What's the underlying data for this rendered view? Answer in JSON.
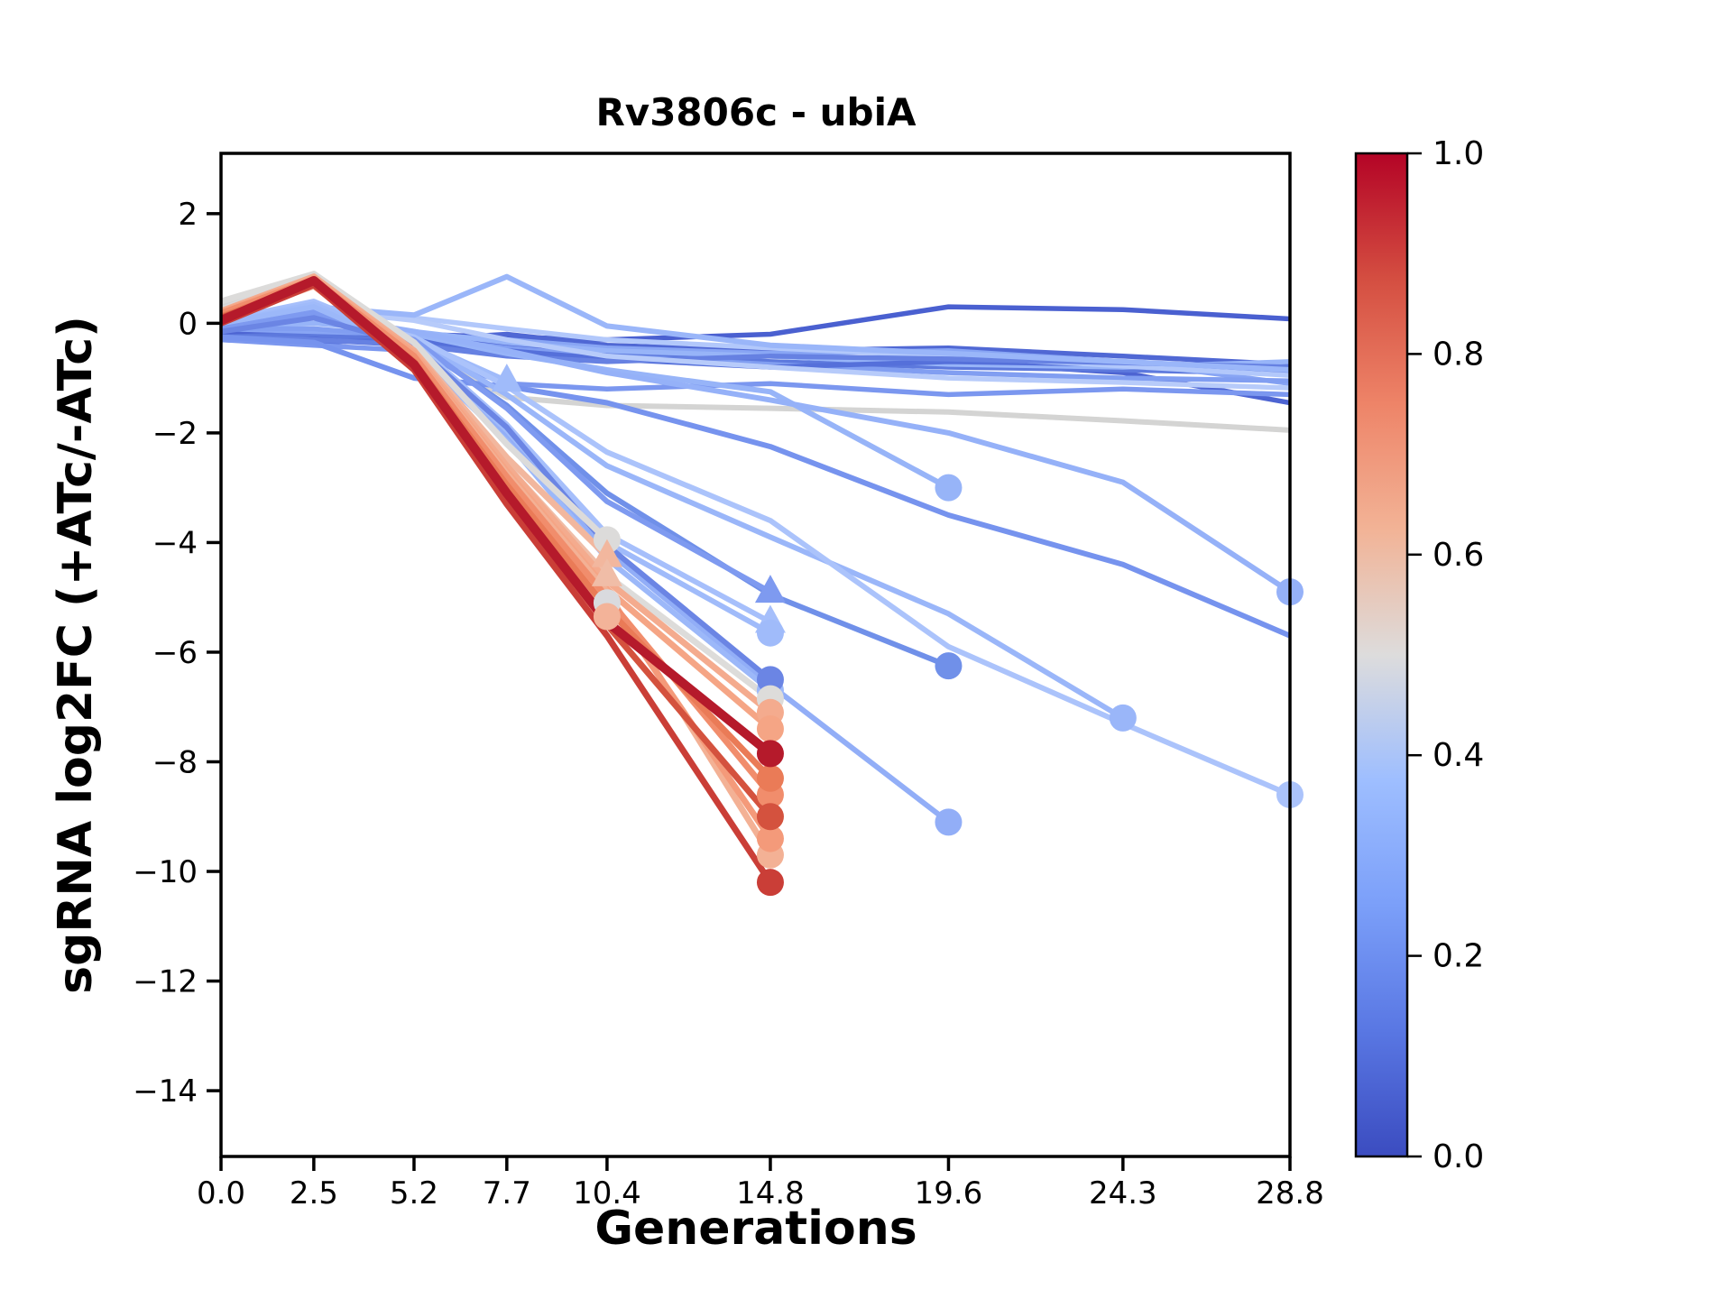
{
  "title": "Rv3806c - ubiA",
  "axes": {
    "xlabel": "Generations",
    "ylabel": "sgRNA log2FC (+ATc/-ATc)",
    "x_tick_labels": [
      "0.0",
      "2.5",
      "5.2",
      "7.7",
      "10.4",
      "14.8",
      "19.6",
      "24.3",
      "28.8"
    ],
    "x_tick_values": [
      0,
      2.5,
      5.2,
      7.7,
      10.4,
      14.8,
      19.6,
      24.3,
      28.8
    ],
    "y_tick_labels": [
      "2",
      "0",
      "−2",
      "−4",
      "−6",
      "−8",
      "−10",
      "−12",
      "−14"
    ],
    "y_tick_values": [
      2,
      0,
      -2,
      -4,
      -6,
      -8,
      -10,
      -12,
      -14
    ],
    "xlim": [
      0,
      28.8
    ],
    "ylim": [
      -15.2,
      3.1
    ],
    "grid": false,
    "frame_color": "#000000"
  },
  "colorbar": {
    "colormap": "coolwarm",
    "tick_labels": [
      "0.0",
      "0.2",
      "0.4",
      "0.6",
      "0.8",
      "1.0"
    ],
    "tick_values": [
      0,
      0.2,
      0.4,
      0.6,
      0.8,
      1.0
    ],
    "range": [
      0,
      1
    ],
    "stops": [
      {
        "t": 0.0,
        "color": "#3b4cc0"
      },
      {
        "t": 0.125,
        "color": "#5977e3"
      },
      {
        "t": 0.25,
        "color": "#7b9ff9"
      },
      {
        "t": 0.375,
        "color": "#9ebeff"
      },
      {
        "t": 0.5,
        "color": "#dddcdc"
      },
      {
        "t": 0.625,
        "color": "#f2b396"
      },
      {
        "t": 0.75,
        "color": "#ee8468"
      },
      {
        "t": 0.875,
        "color": "#d44e41"
      },
      {
        "t": 1.0,
        "color": "#b40426"
      }
    ]
  },
  "chart_data": {
    "type": "line",
    "title": "Rv3806c - ubiA",
    "xlabel": "Generations",
    "ylabel": "sgRNA log2FC (+ATc/-ATc)",
    "xlim": [
      0,
      28.8
    ],
    "ylim": [
      -15.2,
      3.1
    ],
    "legend": "colorbar 0.0-1.0 (coolwarm), sgRNA color value",
    "x_full": [
      0,
      2.5,
      5.2,
      7.7,
      10.4,
      14.8,
      19.6,
      24.3,
      28.8
    ],
    "series": [
      {
        "cv": 0.5,
        "color": "#d4d4d3",
        "lw": 6,
        "marker": "none",
        "x": [
          0,
          2.5,
          5.2,
          7.7,
          10.4,
          14.8,
          19.6,
          24.3,
          28.8
        ],
        "y": [
          0.35,
          0.88,
          -0.4,
          -1.35,
          -1.5,
          -1.55,
          -1.62,
          -1.78,
          -1.95
        ]
      },
      {
        "cv": 0.07,
        "color": "#4a60d0",
        "lw": 5.5,
        "marker": "none",
        "x": [
          0,
          2.5,
          5.2,
          7.7,
          10.4,
          14.8,
          19.6,
          24.3,
          28.8
        ],
        "y": [
          -0.2,
          -0.25,
          -0.2,
          -0.25,
          -0.3,
          -0.2,
          0.3,
          0.25,
          0.08
        ]
      },
      {
        "cv": 0.1,
        "color": "#5068d4",
        "lw": 5.5,
        "marker": "none",
        "x": [
          0,
          2.5,
          5.2,
          7.7,
          10.4,
          14.8,
          19.6,
          24.3,
          28.8
        ],
        "y": [
          -0.15,
          -0.2,
          -0.3,
          -0.2,
          -0.4,
          -0.5,
          -0.45,
          -0.6,
          -0.75
        ]
      },
      {
        "cv": 0.09,
        "color": "#4d64d2",
        "lw": 5.5,
        "marker": "none",
        "x": [
          0,
          2.5,
          5.2,
          7.7,
          10.4,
          14.8,
          19.6,
          24.3,
          28.8
        ],
        "y": [
          -0.2,
          -0.3,
          -0.25,
          -0.4,
          -0.5,
          -0.6,
          -0.7,
          -0.9,
          -1.45
        ]
      },
      {
        "cv": 0.15,
        "color": "#5d79dd",
        "lw": 5.5,
        "marker": "none",
        "x": [
          0,
          2.5,
          5.2,
          7.7,
          10.4,
          14.8,
          19.6,
          24.3,
          28.8
        ],
        "y": [
          -0.25,
          -0.2,
          -0.35,
          -0.5,
          -0.55,
          -0.7,
          -0.8,
          -0.85,
          -0.92
        ]
      },
      {
        "cv": 0.3,
        "color": "#88a5f4",
        "lw": 5.5,
        "marker": "none",
        "x": [
          0,
          2.5,
          5.2,
          7.7,
          10.4,
          14.8,
          19.6,
          24.3,
          28.8
        ],
        "y": [
          -0.1,
          -0.15,
          -0.2,
          -0.3,
          -0.45,
          -0.55,
          -0.5,
          -0.7,
          -1.1
        ]
      },
      {
        "cv": 0.35,
        "color": "#97b4f8",
        "lw": 5.5,
        "marker": "none",
        "x": [
          0,
          2.5,
          5.2,
          7.7,
          10.4,
          14.8,
          19.6,
          24.3,
          28.8
        ],
        "y": [
          -0.05,
          0.0,
          -0.15,
          -0.35,
          -0.5,
          -0.6,
          -0.75,
          -0.8,
          -0.7
        ]
      },
      {
        "cv": 0.28,
        "color": "#819ef1",
        "lw": 5.5,
        "marker": "none",
        "x": [
          0,
          2.5,
          5.2,
          7.7,
          10.4,
          14.8,
          19.6,
          24.3,
          28.8
        ],
        "y": [
          -0.1,
          -0.1,
          -0.25,
          -0.45,
          -0.6,
          -0.75,
          -0.9,
          -1.0,
          -1.05
        ]
      },
      {
        "cv": 0.12,
        "color": "#5570da",
        "lw": 5.5,
        "marker": "none",
        "x": [
          0,
          2.5,
          5.2,
          7.7,
          10.4,
          14.8,
          19.6,
          24.3,
          28.8
        ],
        "y": [
          -0.3,
          -0.35,
          -0.3,
          -0.5,
          -0.65,
          -0.8,
          -0.7,
          -0.75,
          -0.85
        ]
      },
      {
        "cv": 0.43,
        "color": "#b2c8fb",
        "lw": 5.5,
        "marker": "none",
        "x": [
          0,
          2.5,
          5.2,
          7.7,
          10.4,
          14.8,
          19.6,
          24.3,
          28.8
        ],
        "y": [
          0.1,
          0.2,
          0.1,
          -0.1,
          -0.3,
          -0.45,
          -0.6,
          -0.78,
          -0.95
        ]
      },
      {
        "cv": 0.18,
        "color": "#6681e2",
        "lw": 5.5,
        "marker": "none",
        "x": [
          0,
          2.5,
          5.2,
          7.7,
          10.4,
          14.8,
          19.6,
          24.3,
          28.8
        ],
        "y": [
          -0.25,
          -0.3,
          -0.4,
          -0.6,
          -0.7,
          -0.6,
          -0.65,
          -0.72,
          -0.8
        ]
      },
      {
        "cv": 0.44,
        "color": "#b7cbfa",
        "lw": 5.5,
        "marker": "none",
        "x": [
          0,
          2.5,
          5.2,
          7.7,
          10.4,
          14.8,
          19.6,
          24.3,
          28.8
        ],
        "y": [
          0.15,
          0.25,
          0.05,
          -0.3,
          -0.6,
          -0.8,
          -1.0,
          -1.08,
          -1.18
        ]
      },
      {
        "cv": 0.26,
        "color": "#7b97ef",
        "lw": 5.5,
        "marker": "none",
        "x": [
          0,
          2.5,
          5.2,
          7.7,
          10.4,
          14.8,
          19.6,
          24.3,
          28.8
        ],
        "y": [
          -0.3,
          -0.4,
          -0.5,
          -1.1,
          -1.2,
          -1.1,
          -1.3,
          -1.2,
          -1.3
        ]
      },
      {
        "cv": 0.36,
        "color": "#9ab6f9",
        "lw": 6,
        "marker": "none",
        "x": [
          0,
          2.5,
          5.2,
          7.7,
          10.4,
          14.8,
          19.6,
          24.3,
          28.8
        ],
        "y": [
          0.05,
          0.3,
          0.15,
          0.85,
          -0.05,
          -0.4,
          -0.55,
          -0.7,
          -0.85
        ]
      },
      {
        "cv": 0.24,
        "color": "#7693ee",
        "lw": 6,
        "marker": "none",
        "x": [
          0,
          2.5,
          5.2,
          7.7,
          10.4,
          14.8,
          19.6,
          24.3,
          28.8
        ],
        "y": [
          -0.25,
          -0.35,
          -1.0,
          -1.15,
          -1.45,
          -2.25,
          -3.5,
          -4.4,
          -5.7
        ]
      },
      {
        "cv": 0.38,
        "color": "#a0bbfa",
        "lw": 6,
        "marker": "triangle",
        "x": [
          0,
          2.5,
          5.2,
          7.7
        ],
        "y": [
          0.0,
          0.12,
          -0.3,
          -1.05
        ]
      },
      {
        "cv": 0.35,
        "color": "#97b4f8",
        "lw": 6,
        "marker": "circle",
        "x": [
          0,
          2.5,
          5.2,
          7.7,
          10.4,
          14.8,
          19.6
        ],
        "y": [
          0.05,
          0.2,
          -0.2,
          -0.55,
          -0.85,
          -1.25,
          -3.0
        ]
      },
      {
        "cv": 0.34,
        "color": "#95b1f8",
        "lw": 6,
        "marker": "circle",
        "x": [
          0,
          2.5,
          5.2,
          7.7,
          10.4,
          14.8,
          19.6,
          24.3,
          28.8
        ],
        "y": [
          0.0,
          0.15,
          -0.15,
          -0.5,
          -0.9,
          -1.4,
          -2.0,
          -2.9,
          -4.9
        ]
      },
      {
        "cv": 0.36,
        "color": "#9ab6f9",
        "lw": 6,
        "marker": "circle",
        "x": [
          0,
          2.5,
          5.2,
          7.7,
          10.4,
          14.8,
          19.6,
          24.3
        ],
        "y": [
          0.0,
          0.2,
          -0.3,
          -1.3,
          -2.6,
          -3.9,
          -5.3,
          -7.2
        ]
      },
      {
        "cv": 0.41,
        "color": "#abc3fb",
        "lw": 6,
        "marker": "circle",
        "x": [
          0,
          2.5,
          5.2,
          7.7,
          10.4,
          14.8,
          19.6,
          24.3,
          28.8
        ],
        "y": [
          0.05,
          0.25,
          -0.25,
          -1.15,
          -2.35,
          -3.6,
          -5.9,
          -7.3,
          -8.6
        ]
      },
      {
        "cv": 0.33,
        "color": "#92aef7",
        "lw": 6,
        "marker": "circle",
        "x": [
          0,
          2.5,
          5.2,
          7.7,
          10.4,
          14.8,
          19.6
        ],
        "y": [
          0.0,
          0.25,
          -0.45,
          -2.05,
          -4.15,
          -6.6,
          -9.1
        ]
      },
      {
        "cv": 0.22,
        "color": "#7090e9",
        "lw": 6,
        "marker": "circle",
        "x": [
          0,
          2.5,
          5.2,
          7.7,
          10.4,
          14.8,
          19.6
        ],
        "y": [
          -0.1,
          0.15,
          -0.35,
          -1.5,
          -3.1,
          -4.95,
          -6.25
        ]
      },
      {
        "cv": 0.27,
        "color": "#7e9af0",
        "lw": 6,
        "marker": "triangle",
        "x": [
          0,
          2.5,
          5.2,
          7.7,
          10.4,
          14.8
        ],
        "y": [
          -0.1,
          0.2,
          -0.3,
          -1.55,
          -3.25,
          -4.9
        ]
      },
      {
        "cv": 0.4,
        "color": "#a6bffb",
        "lw": 6,
        "marker": "triangle",
        "x": [
          0,
          2.5,
          5.2,
          7.7,
          10.4,
          14.8
        ],
        "y": [
          0.05,
          0.4,
          -0.35,
          -1.85,
          -3.85,
          -5.45
        ]
      },
      {
        "cv": 0.38,
        "color": "#a0bbfa",
        "lw": 6,
        "marker": "circle",
        "x": [
          0,
          2.5,
          5.2,
          7.7,
          10.4,
          14.8
        ],
        "y": [
          0.0,
          0.35,
          -0.4,
          -1.95,
          -4.0,
          -5.65
        ]
      },
      {
        "cv": 0.37,
        "color": "#9cb8f9",
        "lw": 6,
        "marker": "circle",
        "x": [
          0,
          2.5,
          5.2,
          7.7,
          10.4,
          14.8
        ],
        "y": [
          0.0,
          0.3,
          -0.5,
          -2.15,
          -4.3,
          -6.7
        ]
      },
      {
        "cv": 0.2,
        "color": "#6b85e4",
        "lw": 6,
        "marker": "circle",
        "x": [
          0,
          2.5,
          5.2,
          7.7,
          10.4,
          14.8
        ],
        "y": [
          -0.15,
          0.1,
          -0.4,
          -1.9,
          -4.05,
          -6.5
        ]
      },
      {
        "cv": 0.5,
        "color": "#dcdbda",
        "lw": 7,
        "marker": "circle",
        "x": [
          0,
          2.5,
          5.2,
          7.7,
          10.4
        ],
        "y": [
          0.4,
          0.9,
          -0.35,
          -2.2,
          -3.95
        ]
      },
      {
        "cv": 0.49,
        "color": "#d9dade",
        "lw": 7,
        "marker": "circle",
        "x": [
          0,
          2.5,
          5.2,
          7.7,
          10.4
        ],
        "y": [
          0.25,
          0.85,
          -0.55,
          -2.55,
          -5.1
        ]
      },
      {
        "cv": 0.5,
        "color": "#dddcda",
        "lw": 7,
        "marker": "circle",
        "x": [
          0,
          2.5,
          5.2,
          7.7,
          10.4,
          14.8
        ],
        "y": [
          0.2,
          0.8,
          -0.6,
          -2.65,
          -4.6,
          -6.85
        ]
      },
      {
        "cv": 0.58,
        "color": "#f2b79e",
        "lw": 7,
        "marker": "triangle",
        "x": [
          0,
          2.5,
          5.2,
          7.7,
          10.4
        ],
        "y": [
          0.2,
          0.8,
          -0.5,
          -2.45,
          -4.25
        ]
      },
      {
        "cv": 0.56,
        "color": "#f0bda7",
        "lw": 7,
        "marker": "triangle",
        "x": [
          0,
          2.5,
          5.2,
          7.7,
          10.4
        ],
        "y": [
          0.12,
          0.72,
          -0.62,
          -2.6,
          -4.6
        ]
      },
      {
        "cv": 0.59,
        "color": "#f3b399",
        "lw": 7,
        "marker": "circle",
        "x": [
          0,
          2.5,
          5.2,
          7.7,
          10.4
        ],
        "y": [
          0.08,
          0.68,
          -0.7,
          -2.8,
          -5.35
        ]
      },
      {
        "cv": 0.62,
        "color": "#f4ab8e",
        "lw": 7,
        "marker": "circle",
        "x": [
          0,
          2.5,
          5.2,
          7.7,
          10.4,
          14.8
        ],
        "y": [
          0.22,
          0.85,
          -0.5,
          -2.6,
          -4.7,
          -7.1
        ]
      },
      {
        "cv": 0.64,
        "color": "#f5a585",
        "lw": 7,
        "marker": "circle",
        "x": [
          0,
          2.5,
          5.2,
          7.7,
          10.4,
          14.8
        ],
        "y": [
          0.2,
          0.82,
          -0.55,
          -2.7,
          -4.85,
          -7.4
        ]
      },
      {
        "cv": 0.6,
        "color": "#f3b195",
        "lw": 7,
        "marker": "circle",
        "x": [
          0,
          2.5,
          5.2,
          7.7,
          10.4,
          14.8
        ],
        "y": [
          0.1,
          0.75,
          -0.6,
          -2.75,
          -4.9,
          -9.7
        ]
      },
      {
        "cv": 0.68,
        "color": "#f49a7a",
        "lw": 7,
        "marker": "circle",
        "x": [
          0,
          2.5,
          5.2,
          7.7,
          10.4,
          14.8
        ],
        "y": [
          0.15,
          0.78,
          -0.65,
          -2.85,
          -5.05,
          -9.4
        ]
      },
      {
        "cv": 0.72,
        "color": "#f18d6c",
        "lw": 7,
        "marker": "circle",
        "x": [
          0,
          2.5,
          5.2,
          7.7,
          10.4,
          14.8
        ],
        "y": [
          0.18,
          0.8,
          -0.6,
          -2.8,
          -5.0,
          -8.6
        ]
      },
      {
        "cv": 0.78,
        "color": "#ea7b57",
        "lw": 7,
        "marker": "circle",
        "x": [
          0,
          2.5,
          5.2,
          7.7,
          10.4,
          14.8
        ],
        "y": [
          0.12,
          0.75,
          -0.7,
          -2.95,
          -5.2,
          -8.3
        ]
      },
      {
        "cv": 0.85,
        "color": "#d4523e",
        "lw": 7,
        "marker": "circle",
        "x": [
          0,
          2.5,
          5.2,
          7.7,
          10.4,
          14.8
        ],
        "y": [
          0.1,
          0.72,
          -0.8,
          -3.15,
          -5.5,
          -9.0
        ]
      },
      {
        "cv": 0.9,
        "color": "#ca3e37",
        "lw": 7,
        "marker": "circle",
        "x": [
          0,
          2.5,
          5.2,
          7.7,
          10.4,
          14.8
        ],
        "y": [
          0.0,
          0.7,
          -0.85,
          -3.3,
          -5.7,
          -10.2
        ]
      },
      {
        "cv": 0.97,
        "color": "#b51a2b",
        "lw": 10,
        "marker": "circle",
        "x": [
          0,
          2.5,
          5.2,
          7.7,
          10.4,
          14.8
        ],
        "y": [
          0.05,
          0.78,
          -0.75,
          -3.1,
          -5.45,
          -7.85
        ]
      }
    ]
  }
}
